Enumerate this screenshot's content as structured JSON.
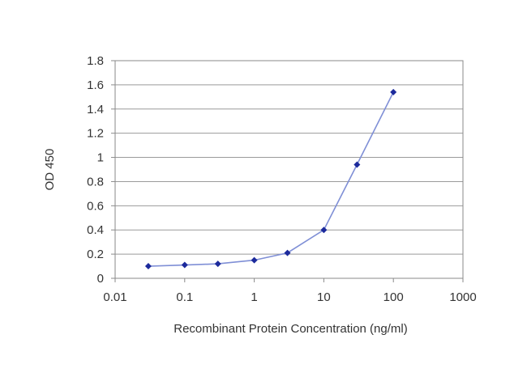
{
  "chart_data": {
    "type": "line",
    "title": "",
    "xlabel": "Recombinant Protein Concentration (ng/ml)",
    "ylabel": "OD 450",
    "x_scale": "log",
    "xlim": [
      0.01,
      1000
    ],
    "ylim": [
      0,
      1.8
    ],
    "x_ticks": [
      "0.01",
      "0.1",
      "1",
      "10",
      "100",
      "1000"
    ],
    "y_ticks": [
      "0",
      "0.2",
      "0.4",
      "0.6",
      "0.8",
      "1",
      "1.2",
      "1.4",
      "1.6",
      "1.8"
    ],
    "grid": "horizontal",
    "legend": "none",
    "series": [
      {
        "color": "#1c2a9c",
        "line_color": "#7f8fd6",
        "x": [
          0.03,
          0.1,
          0.3,
          1,
          3,
          10,
          30,
          100
        ],
        "y": [
          0.1,
          0.11,
          0.12,
          0.15,
          0.21,
          0.4,
          0.94,
          1.54
        ]
      }
    ]
  }
}
